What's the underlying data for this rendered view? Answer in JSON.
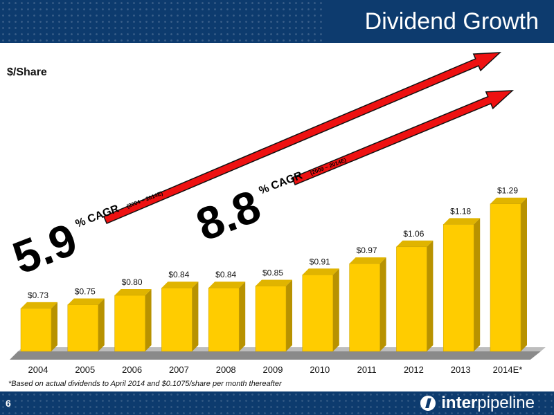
{
  "header": {
    "title": "Dividend Growth"
  },
  "y_axis_label": "$/Share",
  "footnote": "*Based on actual dividends to April 2014 and $0.1075/share per month thereafter",
  "footer": {
    "page_number": "6",
    "logo_bold": "inter",
    "logo_regular": "pipeline"
  },
  "cagr_long": {
    "value": "5.9",
    "suffix": "% CAGR",
    "period": "(2004 – 2014E)"
  },
  "cagr_short": {
    "value": "8.8",
    "suffix": "% CAGR",
    "period": "(2009 – 2014E)"
  },
  "colors": {
    "bar": "#ffcc00",
    "bar_side": "#b89200",
    "bar_top": "#e0b400",
    "arrow": "#ee1111",
    "navy": "#0d3b6e"
  },
  "chart_data": {
    "type": "bar",
    "categories": [
      "2004",
      "2005",
      "2006",
      "2007",
      "2008",
      "2009",
      "2010",
      "2011",
      "2012",
      "2013",
      "2014E*"
    ],
    "values": [
      0.73,
      0.75,
      0.8,
      0.84,
      0.84,
      0.85,
      0.91,
      0.97,
      1.06,
      1.18,
      1.29
    ],
    "data_labels": [
      "$0.73",
      "$0.75",
      "$0.80",
      "$0.84",
      "$0.84",
      "$0.85",
      "$0.91",
      "$0.97",
      "$1.06",
      "$1.18",
      "$1.29"
    ],
    "title": "Dividend Growth",
    "ylabel": "$/Share",
    "grid": false
  }
}
